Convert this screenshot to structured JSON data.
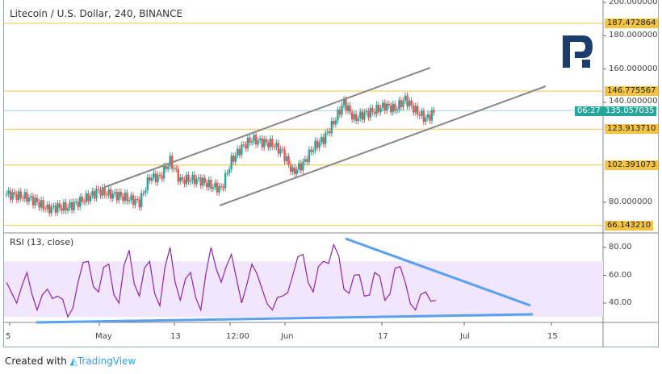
{
  "header": {
    "title": "Litecoin / U.S. Dollar, 240, BINANCE"
  },
  "rsi": {
    "title": "RSI (13, close)",
    "ticks": [
      "80.00",
      "60.00",
      "40.00"
    ],
    "tick_values": [
      80,
      60,
      40
    ],
    "band": [
      30,
      70
    ]
  },
  "price_axis": {
    "ticks": [
      "200.000000",
      "180.000000",
      "160.000000",
      "140.000000",
      "80.000000"
    ],
    "tick_values": [
      200,
      180,
      160,
      140,
      80
    ]
  },
  "levels": [
    {
      "label": "187.472864",
      "value": 187.472864
    },
    {
      "label": "146.775567",
      "value": 146.775567
    },
    {
      "label": "123.913710",
      "value": 123.91371
    },
    {
      "label": "102.391073",
      "value": 102.391073
    },
    {
      "label": "66.143210",
      "value": 66.14321
    }
  ],
  "current": {
    "label": "135.057035",
    "value": 135.057035,
    "timer": "06:27",
    "color": "#26a69a"
  },
  "time_axis": [
    "5",
    "May",
    "13",
    "12:00",
    "Jun",
    "17",
    "Jul",
    "15"
  ],
  "colors": {
    "level": "#f3c443",
    "up": "#26a69a",
    "down": "#ef5350",
    "rsi": "#8e24aa",
    "trend": "#5aa0f0",
    "channel": "#888888"
  },
  "chart_data": {
    "type": "candlestick",
    "closes": [
      85,
      84,
      83,
      80,
      76,
      77,
      77,
      80,
      83,
      87,
      85,
      84,
      82,
      80,
      95,
      95,
      105,
      93,
      94,
      93,
      90,
      88,
      105,
      113,
      118,
      116,
      115,
      110,
      98,
      103,
      113,
      118,
      128,
      140,
      130,
      133,
      135,
      138,
      136,
      142,
      135,
      130,
      135
    ],
    "rsi_values": [
      55,
      40,
      62,
      35,
      50,
      45,
      30,
      55,
      70,
      48,
      68,
      40,
      78,
      45,
      70,
      38,
      80,
      42,
      62,
      35,
      80,
      55,
      75,
      40,
      68,
      50,
      35,
      45,
      60,
      75,
      48,
      70,
      82,
      50,
      60,
      45,
      62,
      42,
      65,
      55,
      35,
      48,
      42
    ]
  },
  "footer": {
    "created": "Created with",
    "brand": "TradingView"
  }
}
